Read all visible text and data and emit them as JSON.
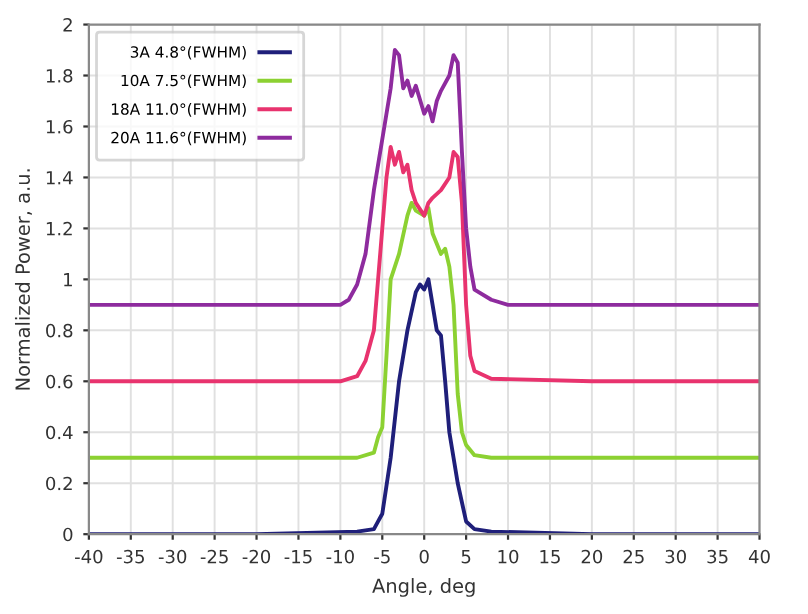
{
  "chart_data": {
    "type": "line",
    "xlabel": "Angle, deg",
    "ylabel": "Normalized Power, a.u.",
    "xlim": [
      -40,
      40
    ],
    "xticks": [
      -40,
      -35,
      -30,
      -25,
      -20,
      -15,
      -10,
      -5,
      0,
      5,
      10,
      15,
      20,
      25,
      30,
      35,
      40
    ],
    "ylim": [
      0,
      2
    ],
    "yticks": [
      0,
      0.2,
      0.4,
      0.6,
      0.8,
      1,
      1.2,
      1.4,
      1.6,
      1.8,
      2
    ],
    "grid": true,
    "legend": "top left",
    "line_style": "solid",
    "marker": "none",
    "series": [
      {
        "name": "3A 4.8°(FWHM)",
        "color": "#1f1f7a",
        "x": [
          -40,
          -20,
          -8,
          -6,
          -5.5,
          -5,
          -4,
          -3,
          -2,
          -1,
          -0.5,
          0,
          0.5,
          1,
          1.5,
          2,
          2.5,
          3,
          3.5,
          4,
          5,
          6,
          8,
          20,
          40
        ],
        "values": [
          0.0,
          0.0,
          0.01,
          0.02,
          0.05,
          0.08,
          0.3,
          0.6,
          0.8,
          0.95,
          0.98,
          0.96,
          1.0,
          0.9,
          0.8,
          0.78,
          0.6,
          0.4,
          0.3,
          0.2,
          0.05,
          0.02,
          0.01,
          0.0,
          0.0
        ]
      },
      {
        "name": "10A 7.5°(FWHM)",
        "color": "#8cd132",
        "x": [
          -40,
          -20,
          -8,
          -6,
          -5.5,
          -5,
          -4.5,
          -4,
          -3,
          -2,
          -1.5,
          -1,
          0,
          0.5,
          1,
          2,
          2.5,
          3,
          3.5,
          4,
          4.5,
          5,
          6,
          8,
          20,
          40
        ],
        "values": [
          0.3,
          0.3,
          0.3,
          0.32,
          0.38,
          0.42,
          0.7,
          1.0,
          1.1,
          1.25,
          1.3,
          1.27,
          1.25,
          1.28,
          1.18,
          1.1,
          1.12,
          1.05,
          0.9,
          0.55,
          0.4,
          0.35,
          0.31,
          0.3,
          0.3,
          0.3
        ]
      },
      {
        "name": "18A 11.0°(FWHM)",
        "color": "#e8336e",
        "x": [
          -40,
          -20,
          -10,
          -8,
          -7,
          -6,
          -5.5,
          -5,
          -4.5,
          -4,
          -3.5,
          -3,
          -2.5,
          -2,
          -1.5,
          -1,
          0,
          0.5,
          1,
          2,
          3,
          3.5,
          4,
          4.5,
          5,
          5.5,
          6,
          8,
          20,
          40
        ],
        "values": [
          0.6,
          0.6,
          0.6,
          0.62,
          0.68,
          0.8,
          1.0,
          1.2,
          1.4,
          1.52,
          1.45,
          1.5,
          1.42,
          1.45,
          1.35,
          1.3,
          1.25,
          1.3,
          1.32,
          1.35,
          1.4,
          1.5,
          1.48,
          1.3,
          0.9,
          0.7,
          0.64,
          0.61,
          0.6,
          0.6
        ]
      },
      {
        "name": "20A 11.6°(FWHM)",
        "color": "#8e2b9e",
        "x": [
          -40,
          -20,
          -10,
          -9,
          -8,
          -7,
          -6,
          -5,
          -4,
          -3.5,
          -3,
          -2.5,
          -2,
          -1.5,
          -1,
          0,
          0.5,
          1,
          1.5,
          2,
          3,
          3.5,
          4,
          4.5,
          5,
          5.5,
          6,
          8,
          10,
          20,
          40
        ],
        "values": [
          0.9,
          0.9,
          0.9,
          0.92,
          0.98,
          1.1,
          1.35,
          1.55,
          1.75,
          1.9,
          1.88,
          1.75,
          1.78,
          1.72,
          1.76,
          1.65,
          1.68,
          1.62,
          1.7,
          1.74,
          1.8,
          1.88,
          1.85,
          1.5,
          1.2,
          1.05,
          0.96,
          0.92,
          0.9,
          0.9,
          0.9
        ]
      }
    ]
  }
}
